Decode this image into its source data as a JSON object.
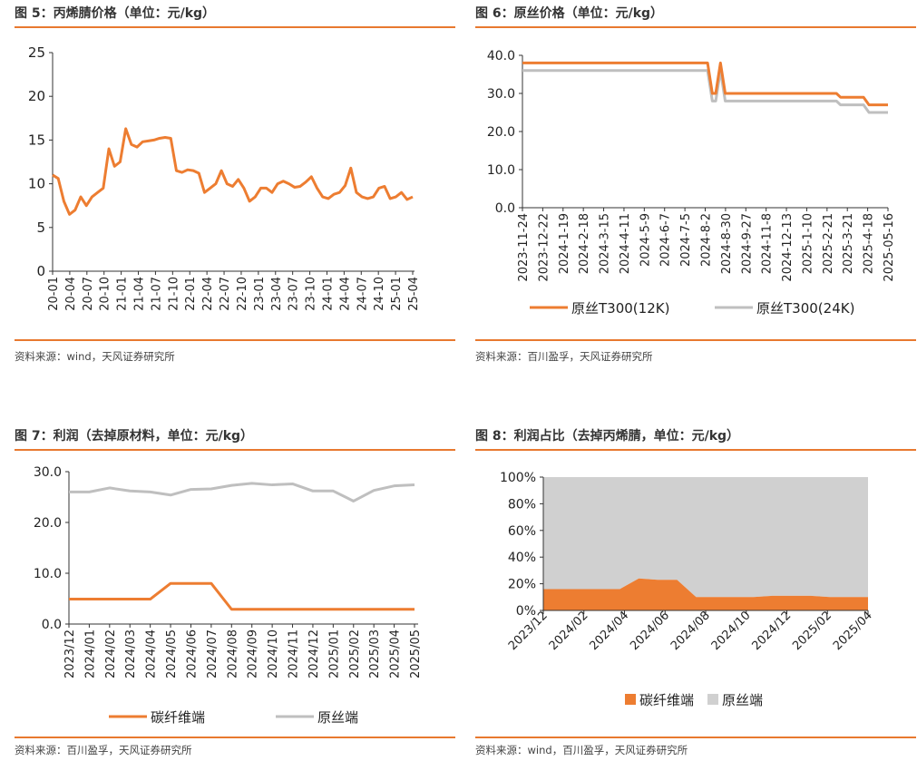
{
  "colors": {
    "accent": "#E8792F",
    "orange": "#ED7D31",
    "gray": "#BFBFBF",
    "area_gray": "#D0D0D0"
  },
  "panels": [
    {
      "title": "图 5：丙烯腈价格（单位：元/kg）",
      "source": "资料来源：wind，天风证券研究所"
    },
    {
      "title": "图 6：原丝价格（单位：元/kg）",
      "source": "资料来源：百川盈孚，天风证券研究所"
    },
    {
      "title": "图 7：利润（去掉原材料，单位：元/kg）",
      "source": "资料来源：百川盈孚，天风证券研究所"
    },
    {
      "title": "图 8：利润占比（去掉丙烯腈，单位：元/kg）",
      "source": "资料来源：wind，百川盈孚，天风证券研究所"
    }
  ],
  "chart_data": [
    {
      "type": "line",
      "title": "",
      "ylim": [
        0,
        25
      ],
      "yticks": [
        "0",
        "5",
        "10",
        "15",
        "20",
        "25"
      ],
      "x_tick_labels": [
        "20-01",
        "20-04",
        "20-07",
        "20-10",
        "21-01",
        "21-04",
        "21-07",
        "21-10",
        "22-01",
        "22-04",
        "22-07",
        "22-10",
        "23-01",
        "23-04",
        "23-07",
        "23-10",
        "24-01",
        "24-04",
        "24-07",
        "24-10",
        "25-01",
        "25-04"
      ],
      "x": [
        "20-01",
        "20-02",
        "20-03",
        "20-04",
        "20-05",
        "20-06",
        "20-07",
        "20-08",
        "20-09",
        "20-10",
        "20-11",
        "20-12",
        "21-01",
        "21-02",
        "21-03",
        "21-04",
        "21-05",
        "21-06",
        "21-07",
        "21-08",
        "21-09",
        "21-10",
        "21-11",
        "21-12",
        "22-01",
        "22-02",
        "22-03",
        "22-04",
        "22-05",
        "22-06",
        "22-07",
        "22-08",
        "22-09",
        "22-10",
        "22-11",
        "22-12",
        "23-01",
        "23-02",
        "23-03",
        "23-04",
        "23-05",
        "23-06",
        "23-07",
        "23-08",
        "23-09",
        "23-10",
        "23-11",
        "23-12",
        "24-01",
        "24-02",
        "24-03",
        "24-04",
        "24-05",
        "24-06",
        "24-07",
        "24-08",
        "24-09",
        "24-10",
        "24-11",
        "24-12",
        "25-01",
        "25-02",
        "25-03",
        "25-04",
        "25-05"
      ],
      "series": [
        {
          "values": [
            11.0,
            10.6,
            8.0,
            6.5,
            7.0,
            8.5,
            7.5,
            8.5,
            9.0,
            9.5,
            14.0,
            12.0,
            12.5,
            16.3,
            14.5,
            14.2,
            14.8,
            14.9,
            15.0,
            15.2,
            15.3,
            15.2,
            11.5,
            11.3,
            11.6,
            11.5,
            11.2,
            9.0,
            9.5,
            10.0,
            11.5,
            10.0,
            9.7,
            10.5,
            9.5,
            8.0,
            8.5,
            9.5,
            9.5,
            9.0,
            10.0,
            10.3,
            10.0,
            9.6,
            9.7,
            10.2,
            10.8,
            9.5,
            8.5,
            8.3,
            8.8,
            9.0,
            9.8,
            11.8,
            9.0,
            8.5,
            8.3,
            8.5,
            9.5,
            9.7,
            8.3,
            8.5,
            9.0,
            8.2,
            8.5
          ],
          "color": "#ED7D31"
        }
      ]
    },
    {
      "type": "line",
      "title": "",
      "ylim": [
        0,
        40
      ],
      "yticks": [
        "0.0",
        "10.0",
        "20.0",
        "30.0",
        "40.0"
      ],
      "x_tick_labels": [
        "2023-11-24",
        "2023-12-22",
        "2024-1-19",
        "2024-2-18",
        "2024-3-15",
        "2024-4-11",
        "2024-5-9",
        "2024-6-7",
        "2024-7-5",
        "2024-8-2",
        "2024-8-30",
        "2024-9-27",
        "2024-11-8",
        "2024-12-13",
        "2025-1-10",
        "2025-2-21",
        "2025-3-21",
        "2025-4-18",
        "2025-05-16"
      ],
      "x": [
        "2023-11-24",
        "2024-08-14",
        "2024-08-23",
        "2024-08-30",
        "2024-09-04",
        "2024-09-11",
        "2024-09-18",
        "2025-03-01",
        "2025-03-07",
        "2025-04-10",
        "2025-04-18",
        "2025-05-16"
      ],
      "series": [
        {
          "name": "原丝T300(12K)",
          "values": [
            38,
            38,
            38,
            30,
            30,
            38,
            30,
            30,
            29,
            29,
            27,
            27
          ],
          "color": "#ED7D31"
        },
        {
          "name": "原丝T300(24K)",
          "values": [
            36,
            36,
            36,
            28,
            28,
            36,
            28,
            28,
            27,
            27,
            25,
            25
          ],
          "color": "#BFBFBF"
        }
      ],
      "legend": "bottom"
    },
    {
      "type": "line",
      "title": "",
      "ylim": [
        0,
        30
      ],
      "yticks": [
        "0.0",
        "10.0",
        "20.0",
        "30.0"
      ],
      "x_tick_labels": [
        "2023/12",
        "2024/01",
        "2024/02",
        "2024/03",
        "2024/04",
        "2024/05",
        "2024/06",
        "2024/07",
        "2024/08",
        "2024/09",
        "2024/10",
        "2024/11",
        "2024/12",
        "2025/01",
        "2025/02",
        "2025/03",
        "2025/04",
        "2025/05"
      ],
      "x": [
        "2023/12",
        "2024/01",
        "2024/02",
        "2024/03",
        "2024/04",
        "2024/05",
        "2024/06",
        "2024/07",
        "2024/08",
        "2024/09",
        "2024/10",
        "2024/11",
        "2024/12",
        "2025/01",
        "2025/02",
        "2025/03",
        "2025/04",
        "2025/05"
      ],
      "series": [
        {
          "name": "碳纤维端",
          "values": [
            4.9,
            4.9,
            4.9,
            4.9,
            4.9,
            8.0,
            8.0,
            8.0,
            2.9,
            2.9,
            2.9,
            2.9,
            2.9,
            2.9,
            2.9,
            2.9,
            2.9,
            2.9
          ],
          "color": "#ED7D31"
        },
        {
          "name": "原丝端",
          "values": [
            26.0,
            26.0,
            26.8,
            26.2,
            26.0,
            25.4,
            26.5,
            26.6,
            27.3,
            27.7,
            27.4,
            27.6,
            26.2,
            26.2,
            24.2,
            26.3,
            27.2,
            27.4
          ],
          "color": "#BFBFBF"
        }
      ],
      "legend": "bottom"
    },
    {
      "type": "area",
      "title": "",
      "ylim": [
        0,
        100
      ],
      "yticks": [
        "0%",
        "20%",
        "40%",
        "60%",
        "80%",
        "100%"
      ],
      "x_tick_labels": [
        "2023/12",
        "2024/02",
        "2024/04",
        "2024/06",
        "2024/08",
        "2024/10",
        "2024/12",
        "2025/02",
        "2025/04"
      ],
      "x": [
        "2023/12",
        "2024/01",
        "2024/02",
        "2024/03",
        "2024/04",
        "2024/05",
        "2024/06",
        "2024/07",
        "2024/08",
        "2024/09",
        "2024/10",
        "2024/11",
        "2024/12",
        "2025/01",
        "2025/02",
        "2025/03",
        "2025/04",
        "2025/05"
      ],
      "series": [
        {
          "name": "碳纤维端",
          "values": [
            16,
            16,
            16,
            16,
            16,
            24,
            23,
            23,
            10,
            10,
            10,
            10,
            11,
            11,
            11,
            10,
            10,
            10
          ],
          "color": "#ED7D31"
        },
        {
          "name": "原丝端",
          "values": [
            84,
            84,
            84,
            84,
            84,
            76,
            77,
            77,
            90,
            90,
            90,
            90,
            89,
            89,
            89,
            90,
            90,
            90
          ],
          "color": "#D0D0D0"
        }
      ],
      "stacked_percent": true,
      "legend": "bottom"
    }
  ]
}
